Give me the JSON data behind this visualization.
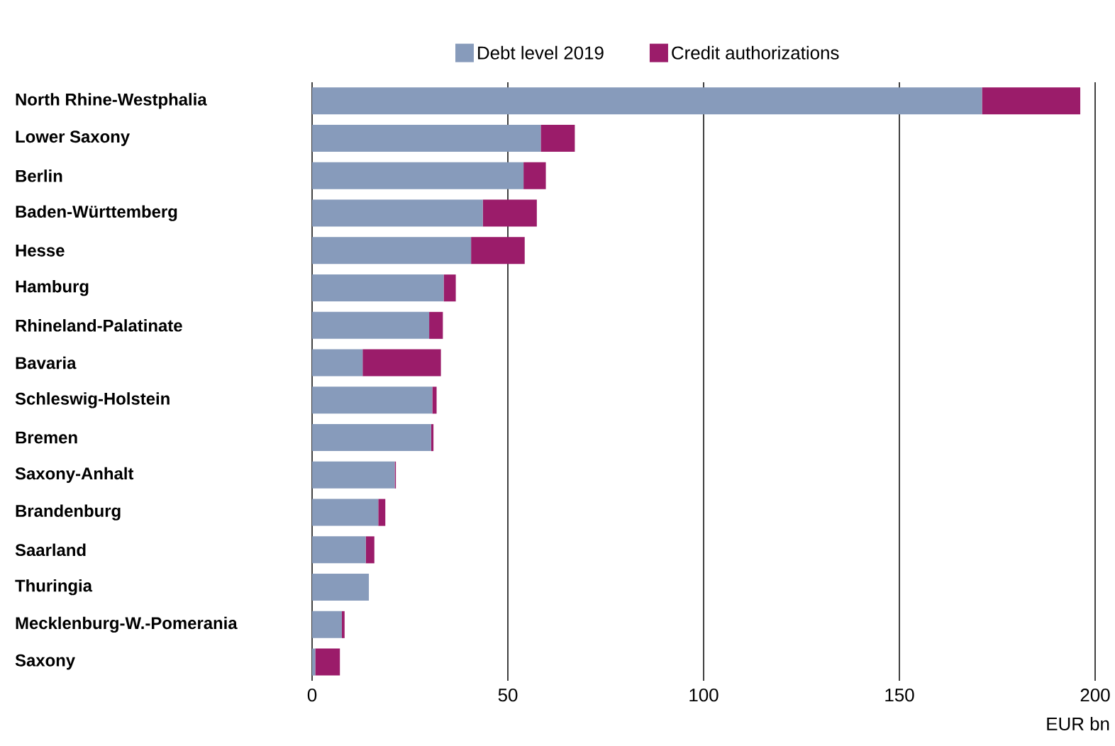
{
  "chart_data": {
    "type": "bar",
    "orientation": "horizontal",
    "stacked": true,
    "categories": [
      "North Rhine-Westphalia",
      "Lower Saxony",
      "Berlin",
      "Baden-Württemberg",
      "Hesse",
      "Hamburg",
      "Rhineland-Palatinate",
      "Bavaria",
      "Schleswig-Holstein",
      "Bremen",
      "Saxony-Anhalt",
      "Brandenburg",
      "Saarland",
      "Thuringia",
      "Mecklenburg-W.-Pomerania",
      "Saxony"
    ],
    "series": [
      {
        "name": "Debt level 2019",
        "color": "#879bbb",
        "values": [
          171.1,
          58.4,
          54.0,
          43.6,
          40.6,
          33.6,
          29.9,
          12.9,
          30.7,
          30.4,
          21.1,
          16.9,
          13.7,
          14.5,
          7.6,
          0.8
        ]
      },
      {
        "name": "Credit authorizations",
        "color": "#9b1c6a",
        "values": [
          25.1,
          8.7,
          5.7,
          13.8,
          13.7,
          3.1,
          3.5,
          20.0,
          1.1,
          0.6,
          0.3,
          1.8,
          2.2,
          0,
          0.7,
          6.3
        ]
      }
    ],
    "xlim": [
      0,
      200
    ],
    "xticks": [
      0,
      50,
      100,
      150,
      200
    ],
    "xlabel": "EUR bn",
    "grid": "x",
    "legend": "top"
  }
}
